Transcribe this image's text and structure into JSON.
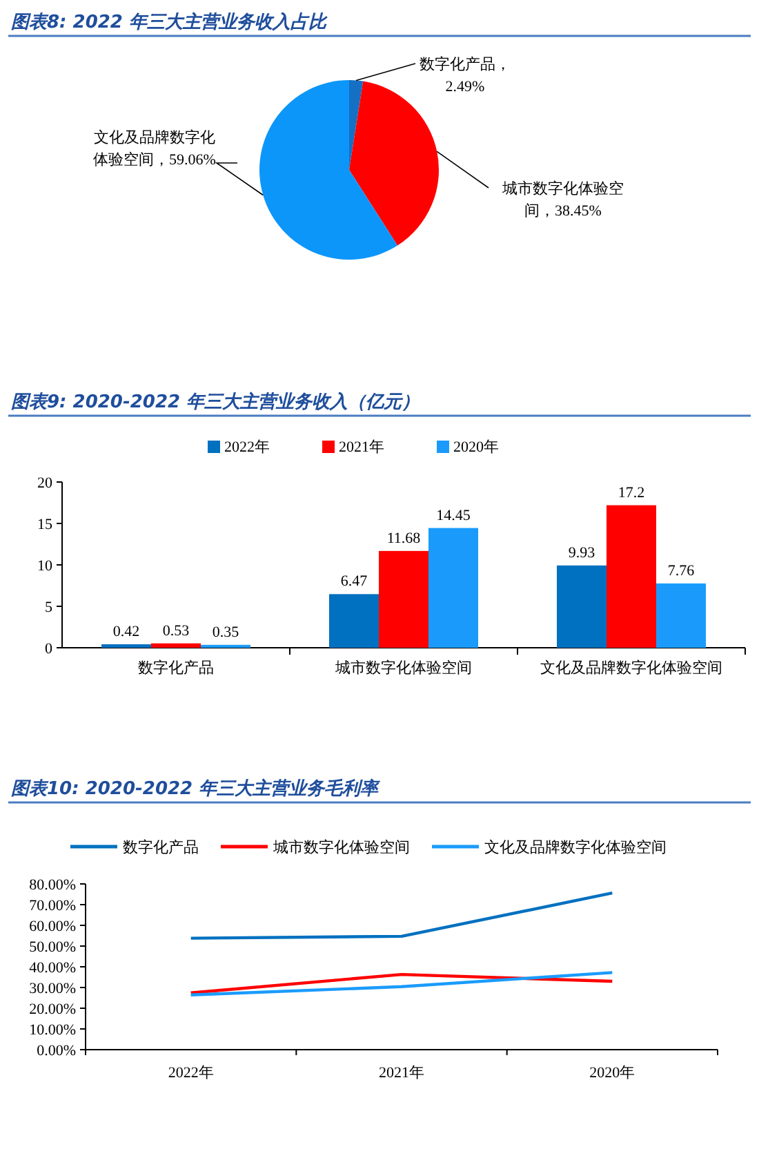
{
  "chart_data": [
    {
      "type": "pie",
      "title": "图表8:  2022 年三大主营业务收入占比",
      "categories": [
        "数字化产品",
        "城市数字化体验空间",
        "文化及品牌数字化体验空间"
      ],
      "values": [
        2.49,
        38.45,
        59.06
      ],
      "value_labels": [
        "，2.49%",
        "，38.45%",
        "，59.06%"
      ],
      "colors": [
        "#1570c4",
        "#ff0000",
        "#0d96fa"
      ]
    },
    {
      "type": "bar",
      "title": "图表9:  2020-2022 年三大主营业务收入（亿元）",
      "categories": [
        "数字化产品",
        "城市数字化体验空间",
        "文化及品牌数字化体验空间"
      ],
      "series": [
        {
          "name": "2022年",
          "color": "#0070c0",
          "values": [
            0.42,
            6.47,
            9.93
          ]
        },
        {
          "name": "2021年",
          "color": "#ff0000",
          "values": [
            0.53,
            11.68,
            17.2
          ]
        },
        {
          "name": "2020年",
          "color": "#1a9bfc",
          "values": [
            0.35,
            14.45,
            7.76
          ]
        }
      ],
      "ylim": [
        0,
        20
      ],
      "yticks": [
        0,
        5,
        10,
        15,
        20
      ],
      "data_labels": true,
      "legend": "top",
      "grid": false
    },
    {
      "type": "line",
      "title": "图表10:  2020-2022 年三大主营业务毛利率",
      "categories": [
        "2022年",
        "2021年",
        "2020年"
      ],
      "series": [
        {
          "name": "数字化产品",
          "color": "#0070c0",
          "values": [
            53.8,
            54.7,
            75.6
          ]
        },
        {
          "name": "城市数字化体验空间",
          "color": "#ff0000",
          "values": [
            27.4,
            36.3,
            33.0
          ]
        },
        {
          "name": "文化及品牌数字化体验空间",
          "color": "#1a9bfc",
          "values": [
            26.4,
            30.4,
            37.2
          ]
        }
      ],
      "ylim": [
        0,
        80
      ],
      "yticks": [
        {
          "value": 0,
          "label": "0.00%"
        },
        {
          "value": 10,
          "label": "10.00%"
        },
        {
          "value": 20,
          "label": "20.00%"
        },
        {
          "value": 30,
          "label": "30.00%"
        },
        {
          "value": 40,
          "label": "40.00%"
        },
        {
          "value": 50,
          "label": "50.00%"
        },
        {
          "value": 60,
          "label": "60.00%"
        },
        {
          "value": 70,
          "label": "70.00%"
        },
        {
          "value": 80,
          "label": "80.00%"
        }
      ],
      "legend": "top",
      "grid": false,
      "marker": "none",
      "line_style": "solid"
    }
  ]
}
